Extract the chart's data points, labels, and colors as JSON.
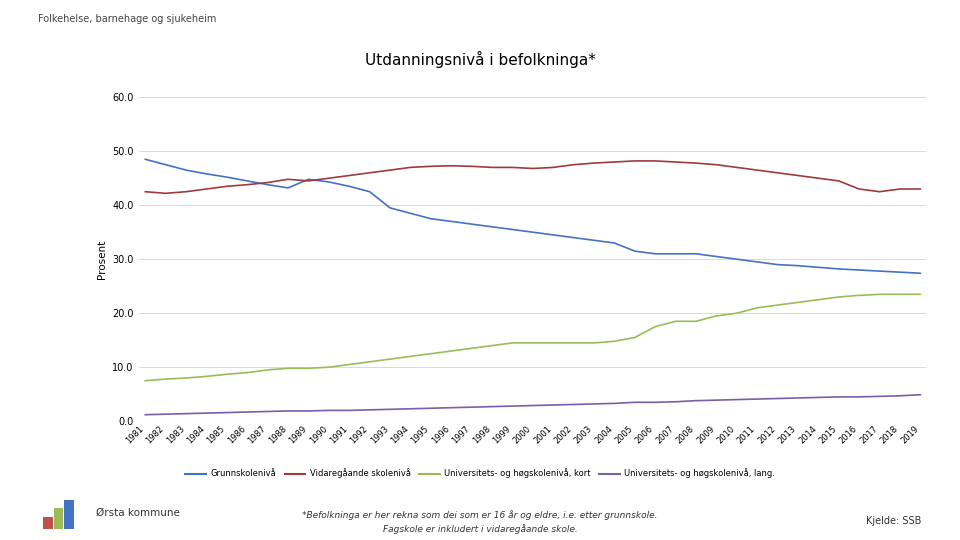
{
  "title": "Utdanningsnivå i befolkninga*",
  "header": "Folkehelse, barnehage og sjukeheim",
  "ylabel": "Prosent",
  "source": "Kjelde: SSB",
  "footnote1": "*Befolkninga er her rekna som dei som er 16 år og eldre, i.e. etter grunnskole.",
  "footnote2": "Fagskole er inkludert i vidaregåande skole.",
  "kommune": "Ørsta kommune",
  "years": [
    1981,
    1982,
    1983,
    1984,
    1985,
    1986,
    1987,
    1988,
    1989,
    1990,
    1991,
    1992,
    1993,
    1994,
    1995,
    1996,
    1997,
    1998,
    1999,
    2000,
    2001,
    2002,
    2003,
    2004,
    2005,
    2006,
    2007,
    2008,
    2009,
    2010,
    2011,
    2012,
    2013,
    2014,
    2015,
    2016,
    2017,
    2018,
    2019
  ],
  "grunnskole": [
    48.5,
    47.5,
    46.5,
    45.8,
    45.2,
    44.5,
    43.8,
    43.2,
    44.8,
    44.3,
    43.5,
    42.5,
    39.5,
    38.5,
    37.5,
    37.0,
    36.5,
    36.0,
    35.5,
    35.0,
    34.5,
    34.0,
    33.5,
    33.0,
    31.5,
    31.0,
    31.0,
    31.0,
    30.5,
    30.0,
    29.5,
    29.0,
    28.8,
    28.5,
    28.2,
    28.0,
    27.8,
    27.6,
    27.4
  ],
  "videregaande": [
    42.5,
    42.2,
    42.5,
    43.0,
    43.5,
    43.8,
    44.2,
    44.8,
    44.5,
    45.0,
    45.5,
    46.0,
    46.5,
    47.0,
    47.2,
    47.3,
    47.2,
    47.0,
    47.0,
    46.8,
    47.0,
    47.5,
    47.8,
    48.0,
    48.2,
    48.2,
    48.0,
    47.8,
    47.5,
    47.0,
    46.5,
    46.0,
    45.5,
    45.0,
    44.5,
    43.0,
    42.5,
    43.0,
    43.0
  ],
  "uni_kort": [
    7.5,
    7.8,
    8.0,
    8.3,
    8.7,
    9.0,
    9.5,
    9.8,
    9.8,
    10.0,
    10.5,
    11.0,
    11.5,
    12.0,
    12.5,
    13.0,
    13.5,
    14.0,
    14.5,
    14.5,
    14.5,
    14.5,
    14.5,
    14.8,
    15.5,
    17.5,
    18.5,
    18.5,
    19.5,
    20.0,
    21.0,
    21.5,
    22.0,
    22.5,
    23.0,
    23.3,
    23.5,
    23.5,
    23.5
  ],
  "uni_lang": [
    1.2,
    1.3,
    1.4,
    1.5,
    1.6,
    1.7,
    1.8,
    1.9,
    1.9,
    2.0,
    2.0,
    2.1,
    2.2,
    2.3,
    2.4,
    2.5,
    2.6,
    2.7,
    2.8,
    2.9,
    3.0,
    3.1,
    3.2,
    3.3,
    3.5,
    3.5,
    3.6,
    3.8,
    3.9,
    4.0,
    4.1,
    4.2,
    4.3,
    4.4,
    4.5,
    4.5,
    4.6,
    4.7,
    4.9
  ],
  "color_grunnskole": "#4472C4",
  "color_videregaande": "#9E3B3B",
  "color_uni_kort": "#9BBB59",
  "color_uni_lang": "#7B5EA7",
  "ylim": [
    0,
    60
  ],
  "yticks": [
    0.0,
    10.0,
    20.0,
    30.0,
    40.0,
    50.0,
    60.0
  ],
  "legend_grunnskole": "Grunnskolenivå",
  "legend_videregaande": "Vidaregåande skolenivå",
  "legend_uni_kort": "Universitets- og høgskolenivå, kort",
  "legend_uni_lang": "Universitets- og høgskolenivå, lang."
}
